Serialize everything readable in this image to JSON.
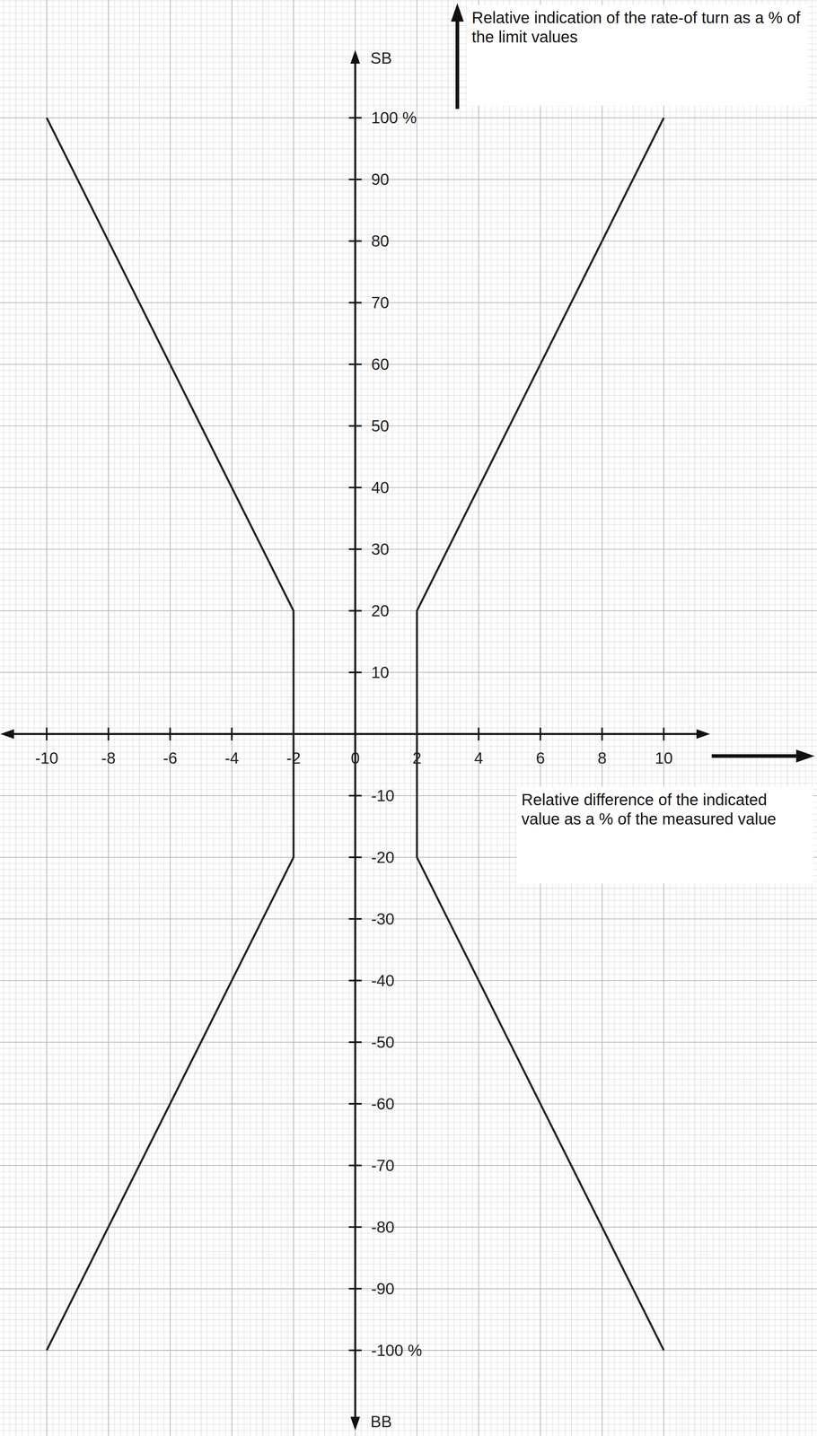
{
  "chart_data": {
    "type": "line",
    "x_label": "Relative difference of the indicated value as a % of the measured value",
    "y_label": "Relative indication of the rate-of turn as a % of the limit values",
    "annotations": [
      "SB",
      "BB"
    ],
    "series": [
      {
        "color": "#222222",
        "x": [
          -10,
          -2,
          -2,
          -10
        ],
        "values": [
          100,
          20,
          -20,
          -100
        ]
      },
      {
        "color": "#222222",
        "x": [
          10,
          2,
          2,
          10
        ],
        "values": [
          100,
          20,
          -20,
          -100
        ]
      }
    ],
    "xlim": [
      -11.5,
      11.5
    ],
    "ylim": [
      -113,
      111
    ],
    "xticks": [
      -10,
      -8,
      -6,
      -4,
      -2,
      0,
      2,
      4,
      6,
      8,
      10
    ],
    "yticks": [
      {
        "value": -100,
        "label": "-100 %"
      },
      -90,
      -80,
      -70,
      -60,
      -50,
      -40,
      -30,
      -20,
      -10,
      10,
      20,
      30,
      40,
      50,
      60,
      70,
      80,
      90,
      {
        "value": 100,
        "label": "100 %"
      }
    ],
    "grid": true
  }
}
